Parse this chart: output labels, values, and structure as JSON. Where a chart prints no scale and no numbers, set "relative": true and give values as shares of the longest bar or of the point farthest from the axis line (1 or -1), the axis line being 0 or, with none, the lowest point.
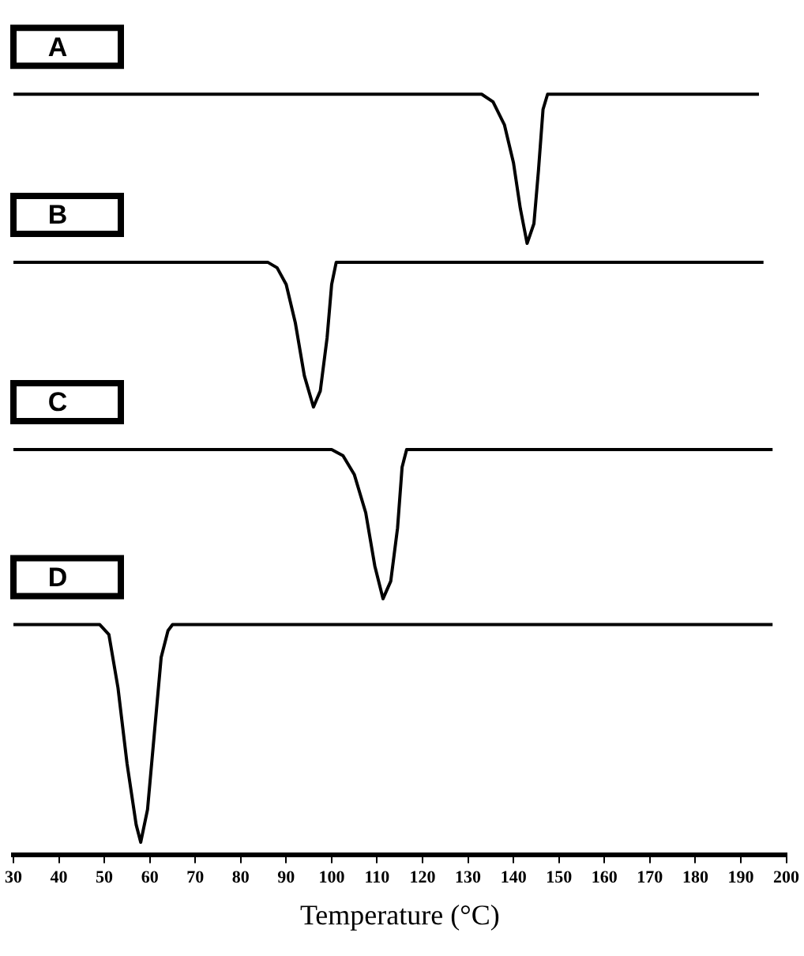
{
  "chart_data": {
    "type": "line",
    "relative": true,
    "xlabel": "Temperature (°C)",
    "xlim": [
      30,
      200
    ],
    "xticks": [
      30,
      40,
      50,
      60,
      70,
      80,
      90,
      100,
      110,
      120,
      130,
      140,
      150,
      160,
      170,
      180,
      190,
      200
    ],
    "grid": false,
    "legend": false,
    "marker": "none",
    "line_style": "solid",
    "series": [
      {
        "name": "A",
        "color": "#000000",
        "x": [
          30,
          133,
          135.5,
          138,
          140,
          141.5,
          143,
          144.5,
          145.5,
          146.5,
          147.5,
          194
        ],
        "values": [
          1,
          1,
          0.99,
          0.96,
          0.91,
          0.85,
          0.804,
          0.83,
          0.9,
          0.98,
          1,
          1
        ]
      },
      {
        "name": "B",
        "color": "#000000",
        "x": [
          30,
          86,
          88,
          90,
          92,
          94,
          96,
          97.5,
          99,
          100,
          101,
          195
        ],
        "values": [
          0.779,
          0.779,
          0.772,
          0.75,
          0.7,
          0.63,
          0.589,
          0.61,
          0.68,
          0.75,
          0.779,
          0.779
        ]
      },
      {
        "name": "C",
        "color": "#000000",
        "x": [
          30,
          100,
          102.5,
          105,
          107.5,
          109.5,
          111.3,
          113,
          114.5,
          115.5,
          116.5,
          197
        ],
        "values": [
          0.533,
          0.533,
          0.525,
          0.5,
          0.45,
          0.38,
          0.337,
          0.36,
          0.43,
          0.51,
          0.533,
          0.533
        ]
      },
      {
        "name": "D",
        "color": "#000000",
        "x": [
          30,
          49,
          51,
          53,
          55,
          57,
          58,
          59.5,
          61,
          62.5,
          64,
          65,
          197
        ],
        "values": [
          0.303,
          0.303,
          0.29,
          0.22,
          0.12,
          0.04,
          0.017,
          0.06,
          0.16,
          0.26,
          0.295,
          0.303,
          0.303
        ]
      }
    ]
  }
}
